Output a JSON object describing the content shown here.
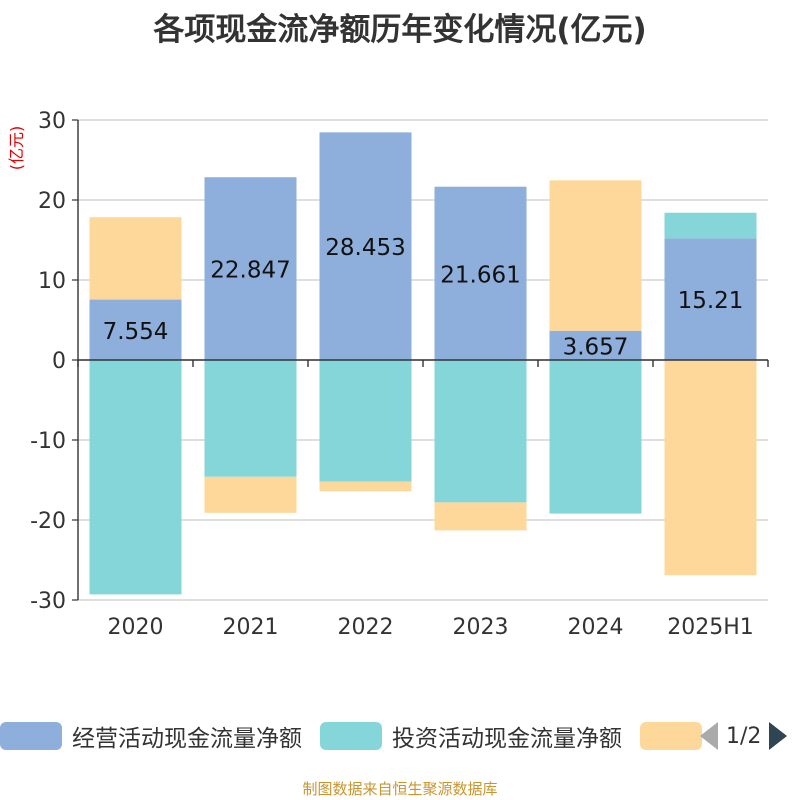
{
  "title": "各项现金流净额历年变化情况(亿元)",
  "source_note": "制图数据来自恒生聚源数据库",
  "colors": {
    "operating": "#8eaedb",
    "investing": "#85d6d8",
    "financing": "#fed89a",
    "axis": "#333333",
    "grid": "#cccccc",
    "unit": "#e00000"
  },
  "legend": {
    "items": [
      {
        "label": "经营活动现金流量净额"
      },
      {
        "label": "投资活动现金流量净额"
      },
      {
        "label": ""
      }
    ],
    "page_label": "1/2"
  },
  "chart_data": {
    "type": "bar",
    "stacked": true,
    "title": "各项现金流净额历年变化情况(亿元)",
    "unit_label": "(亿元)",
    "categories": [
      "2020",
      "2021",
      "2022",
      "2023",
      "2024",
      "2025H1"
    ],
    "ylim": [
      -30,
      30
    ],
    "yticks": [
      30,
      20,
      10,
      0,
      -10,
      -20,
      -30
    ],
    "grid": true,
    "legend_position": "bottom",
    "series": [
      {
        "name": "经营活动现金流量净额",
        "key": "operating",
        "values": [
          7.554,
          22.847,
          28.453,
          21.661,
          3.657,
          15.21
        ],
        "labels": [
          "7.554",
          "22.847",
          "28.453",
          "21.661",
          "3.657",
          "15.21"
        ]
      },
      {
        "name": "投资活动现金流量净额",
        "key": "investing",
        "values": [
          -29.3,
          -14.6,
          -15.2,
          -17.8,
          -19.2,
          3.2
        ]
      },
      {
        "name": "",
        "key": "financing",
        "values": [
          10.3,
          -4.5,
          -1.2,
          -3.5,
          18.8,
          -26.9
        ]
      }
    ]
  }
}
